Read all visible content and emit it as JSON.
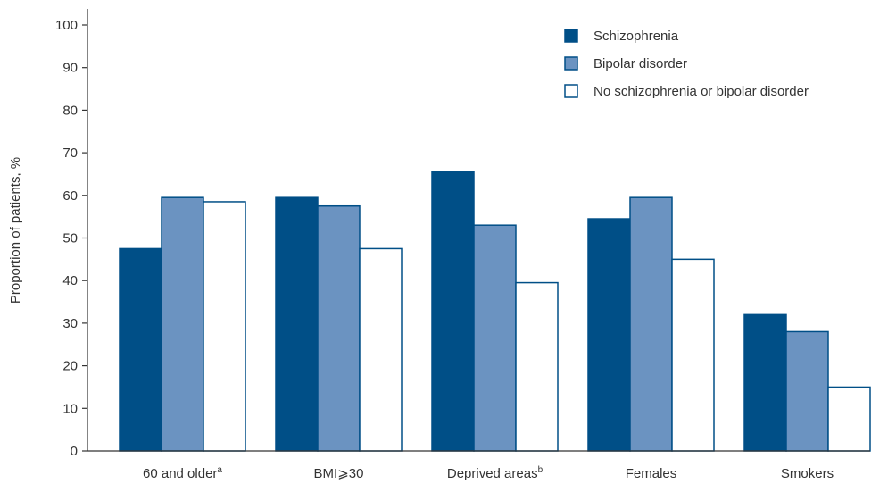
{
  "chart_data": {
    "type": "bar",
    "title": "",
    "ylabel": "Proportion of patients, %",
    "xlabel": "",
    "ylim": [
      0,
      100
    ],
    "yticks": [
      0,
      10,
      20,
      30,
      40,
      50,
      60,
      70,
      80,
      90,
      100
    ],
    "categories": [
      {
        "label": "60 and older",
        "sup": "a"
      },
      {
        "label": "BMI⩾30",
        "sup": ""
      },
      {
        "label": "Deprived areas",
        "sup": "b"
      },
      {
        "label": "Females",
        "sup": ""
      },
      {
        "label": "Smokers",
        "sup": ""
      }
    ],
    "series": [
      {
        "name": "Schizophrenia",
        "values": [
          47.5,
          59.5,
          65.5,
          54.5,
          32
        ],
        "fill": "#004f87",
        "stroke": "#004f87"
      },
      {
        "name": "Bipolar disorder",
        "values": [
          59.5,
          57.5,
          53,
          59.5,
          28
        ],
        "fill": "#6b93c1",
        "stroke": "#004f87"
      },
      {
        "name": "No schizophrenia or bipolar disorder",
        "values": [
          58.5,
          47.5,
          39.5,
          45,
          15
        ],
        "fill": "#ffffff",
        "stroke": "#004f87"
      }
    ],
    "grid": false,
    "legend_position": "top-right"
  }
}
